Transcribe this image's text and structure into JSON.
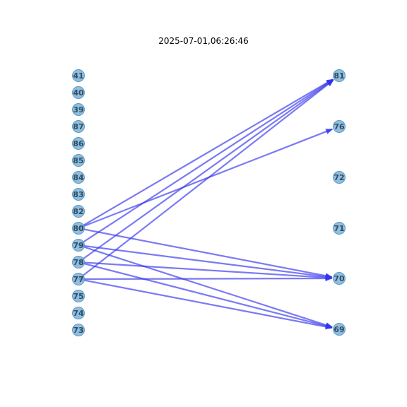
{
  "title": "2025-07-01,06:26:46",
  "colors": {
    "node_fill": "#7fb2d6",
    "node_stroke": "#5b9bc8",
    "edge": "#3333ee",
    "label": "#2e4e66"
  },
  "left_nodes": [
    "41",
    "40",
    "39",
    "87",
    "86",
    "85",
    "84",
    "83",
    "82",
    "80",
    "79",
    "78",
    "77",
    "75",
    "74",
    "73"
  ],
  "right_nodes": [
    "81",
    "76",
    "72",
    "71",
    "70",
    "69"
  ],
  "edges": [
    {
      "from": "80",
      "to": "81"
    },
    {
      "from": "80",
      "to": "76"
    },
    {
      "from": "80",
      "to": "70"
    },
    {
      "from": "79",
      "to": "81"
    },
    {
      "from": "79",
      "to": "70"
    },
    {
      "from": "79",
      "to": "69"
    },
    {
      "from": "78",
      "to": "81"
    },
    {
      "from": "78",
      "to": "70"
    },
    {
      "from": "78",
      "to": "69"
    },
    {
      "from": "77",
      "to": "81"
    },
    {
      "from": "77",
      "to": "70"
    },
    {
      "from": "77",
      "to": "69"
    }
  ]
}
